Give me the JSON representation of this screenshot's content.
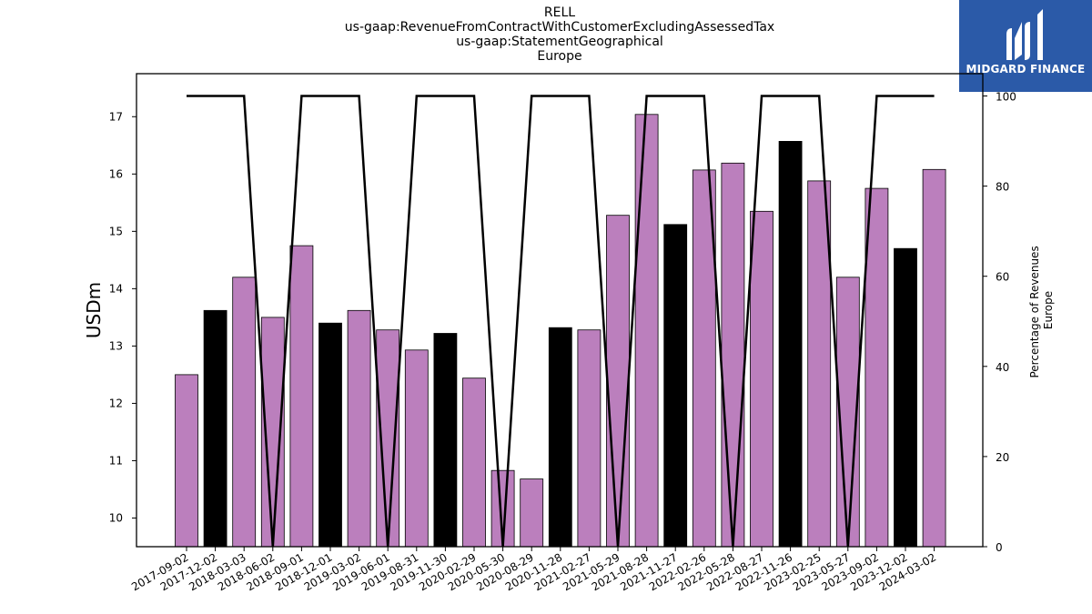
{
  "title_lines": [
    "RELL",
    "us-gaap:RevenueFromContractWithCustomerExcludingAssessedTax",
    "us-gaap:StatementGeographical",
    "Europe"
  ],
  "logo": {
    "text": "MIDGARD FINANCE",
    "background": "#2b5aa8"
  },
  "colors": {
    "bar_default": "#bb7fbd",
    "bar_highlight": "#000000",
    "line": "#000000"
  },
  "chart_data": {
    "type": "bar",
    "categories": [
      "2017-09-02",
      "2017-12-02",
      "2018-03-03",
      "2018-06-02",
      "2018-09-01",
      "2018-12-01",
      "2019-03-02",
      "2019-06-01",
      "2019-08-31",
      "2019-11-30",
      "2020-02-29",
      "2020-05-30",
      "2020-08-29",
      "2020-11-28",
      "2021-02-27",
      "2021-05-29",
      "2021-08-28",
      "2021-11-27",
      "2022-02-26",
      "2022-05-28",
      "2022-08-27",
      "2022-11-26",
      "2023-02-25",
      "2023-05-27",
      "2023-09-02",
      "2023-12-02",
      "2024-03-02"
    ],
    "values": [
      12.5,
      13.62,
      14.2,
      13.5,
      14.75,
      13.4,
      13.62,
      13.28,
      12.93,
      13.22,
      12.44,
      10.83,
      10.68,
      13.32,
      13.28,
      15.28,
      17.04,
      15.12,
      16.07,
      16.19,
      15.35,
      16.57,
      15.88,
      14.2,
      15.75,
      14.7,
      16.08
    ],
    "highlight": [
      false,
      true,
      false,
      false,
      false,
      true,
      false,
      false,
      false,
      true,
      false,
      false,
      false,
      true,
      false,
      false,
      false,
      true,
      false,
      false,
      false,
      true,
      false,
      false,
      false,
      true,
      false
    ],
    "ylabel": "USDm",
    "ylim": [
      9.5,
      17.75
    ],
    "yticks": [
      10,
      11,
      12,
      13,
      14,
      15,
      16,
      17
    ],
    "secondary": {
      "ylabel_lines": [
        "Percentage of Revenues",
        "Europe"
      ],
      "ylim": [
        0,
        100
      ],
      "yticks": [
        0,
        20,
        40,
        60,
        80,
        100
      ],
      "values": [
        100,
        100,
        100,
        0,
        100,
        100,
        100,
        0,
        100,
        100,
        100,
        0,
        100,
        100,
        100,
        0,
        100,
        100,
        100,
        0,
        100,
        100,
        100,
        0,
        100,
        100,
        100
      ]
    },
    "grid": false
  }
}
